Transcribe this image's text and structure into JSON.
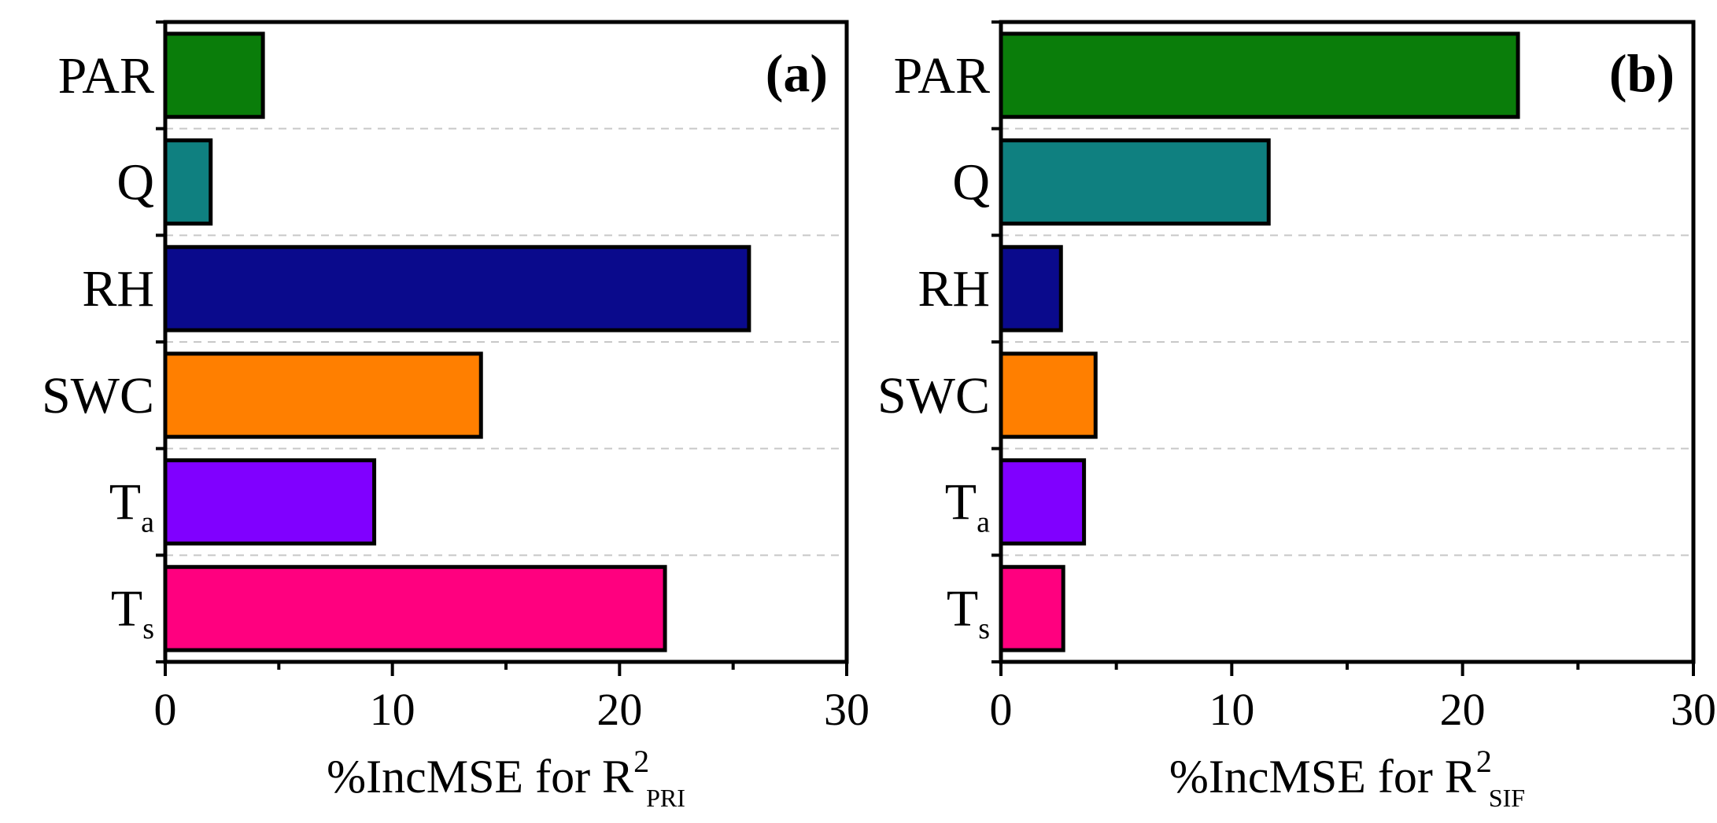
{
  "chart_data": [
    {
      "type": "bar",
      "orientation": "horizontal",
      "panel_label": "(a)",
      "categories": [
        {
          "base": "PAR",
          "sub": ""
        },
        {
          "base": "Q",
          "sub": ""
        },
        {
          "base": "RH",
          "sub": ""
        },
        {
          "base": "SWC",
          "sub": ""
        },
        {
          "base": "T",
          "sub": "a"
        },
        {
          "base": "T",
          "sub": "s"
        }
      ],
      "values": [
        4.3,
        2.0,
        25.7,
        13.9,
        9.2,
        22.0
      ],
      "colors": [
        "#0a7d0a",
        "#0f8080",
        "#0a0a8c",
        "#ff7f00",
        "#8000ff",
        "#ff007f"
      ],
      "xlim": [
        0,
        30
      ],
      "xticks": [
        0,
        10,
        20,
        30
      ],
      "xticks_minor": [
        5,
        15,
        25
      ],
      "xlabel": {
        "main": "%IncMSE for R",
        "sup": "2",
        "sub": "PRI"
      },
      "grid": "horizontal-dashed",
      "panel_label_position": "top-right"
    },
    {
      "type": "bar",
      "orientation": "horizontal",
      "panel_label": "(b)",
      "categories": [
        {
          "base": "PAR",
          "sub": ""
        },
        {
          "base": "Q",
          "sub": ""
        },
        {
          "base": "RH",
          "sub": ""
        },
        {
          "base": "SWC",
          "sub": ""
        },
        {
          "base": "T",
          "sub": "a"
        },
        {
          "base": "T",
          "sub": "s"
        }
      ],
      "values": [
        22.4,
        11.6,
        2.6,
        4.1,
        3.6,
        2.7
      ],
      "colors": [
        "#0a7d0a",
        "#0f8080",
        "#0a0a8c",
        "#ff7f00",
        "#8000ff",
        "#ff007f"
      ],
      "xlim": [
        0,
        30
      ],
      "xticks": [
        0,
        10,
        20,
        30
      ],
      "xticks_minor": [
        5,
        15,
        25
      ],
      "xlabel": {
        "main": "%IncMSE for R",
        "sup": "2",
        "sub": "SIF"
      },
      "grid": "horizontal-dashed",
      "panel_label_position": "top-right"
    }
  ]
}
